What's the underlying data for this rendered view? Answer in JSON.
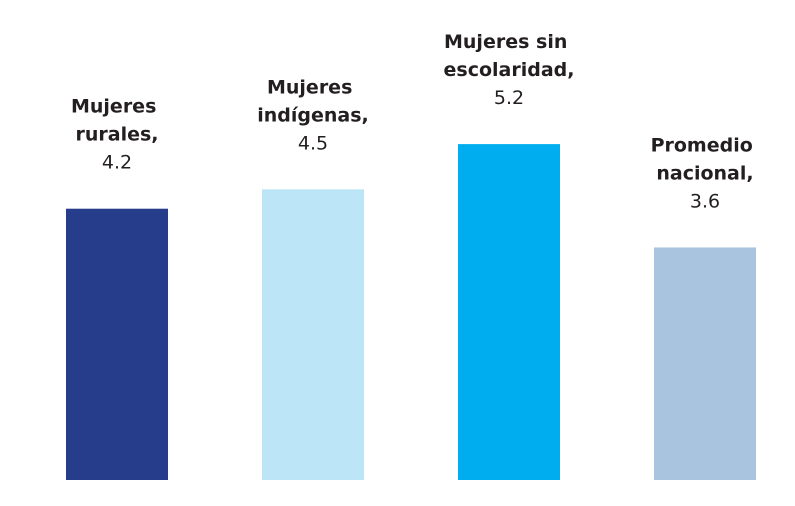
{
  "chart_data": {
    "type": "bar",
    "categories": [
      "Mujeres rurales,",
      "Mujeres indígenas,",
      "Mujeres sin escolaridad,",
      "Promedio nacional,"
    ],
    "values": [
      4.2,
      4.5,
      5.2,
      3.6
    ],
    "colors": [
      "#253d8a",
      "#bde5f8",
      "#00adef",
      "#a9c4de"
    ],
    "ylim": [
      0,
      7.4
    ]
  }
}
